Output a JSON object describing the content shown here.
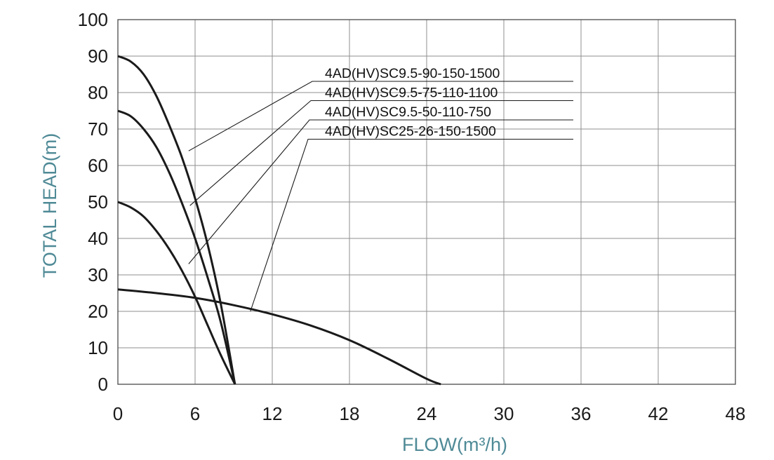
{
  "chart_data": {
    "type": "line",
    "xlabel": "FLOW(m³/h)",
    "ylabel": "TOTAL HEAD(m)",
    "xlim": [
      0,
      48
    ],
    "ylim": [
      0,
      100
    ],
    "x_ticks": [
      "0",
      "6",
      "12",
      "18",
      "24",
      "30",
      "36",
      "42",
      "48"
    ],
    "y_ticks": [
      "0",
      "10",
      "20",
      "30",
      "40",
      "50",
      "60",
      "70",
      "80",
      "90",
      "100"
    ],
    "grid": true,
    "series": [
      {
        "name": "4AD(HV)SC9.5-90-150-1500",
        "x": [
          0,
          1,
          2,
          3,
          4,
          5,
          6,
          7,
          8,
          9.1
        ],
        "y": [
          90,
          88.5,
          85,
          79,
          71,
          62,
          51,
          38,
          22,
          0
        ],
        "label_at": [
          5.5,
          64
        ]
      },
      {
        "name": "4AD(HV)SC9.5-75-110-1100",
        "x": [
          0,
          1,
          2,
          3,
          4,
          5,
          6,
          7,
          8,
          9.1
        ],
        "y": [
          75,
          73.5,
          70,
          65,
          58,
          49.5,
          40,
          29,
          17,
          0
        ],
        "label_at": [
          5.6,
          49
        ]
      },
      {
        "name": "4AD(HV)SC9.5-50-110-750",
        "x": [
          0,
          1,
          2,
          3,
          4,
          5,
          6,
          7,
          8,
          9.1
        ],
        "y": [
          50,
          48.5,
          46,
          42,
          37,
          31,
          24,
          16,
          8,
          0
        ],
        "label_at": [
          5.5,
          33
        ]
      },
      {
        "name": "4AD(HV)SC25-26-150-1500",
        "x": [
          0,
          3,
          6,
          9,
          12,
          15,
          18,
          21,
          24,
          25.1
        ],
        "y": [
          26,
          25,
          23.7,
          21.7,
          19.2,
          16.1,
          12.1,
          7,
          1.5,
          0
        ],
        "label_at": [
          10.3,
          20
        ]
      }
    ]
  }
}
